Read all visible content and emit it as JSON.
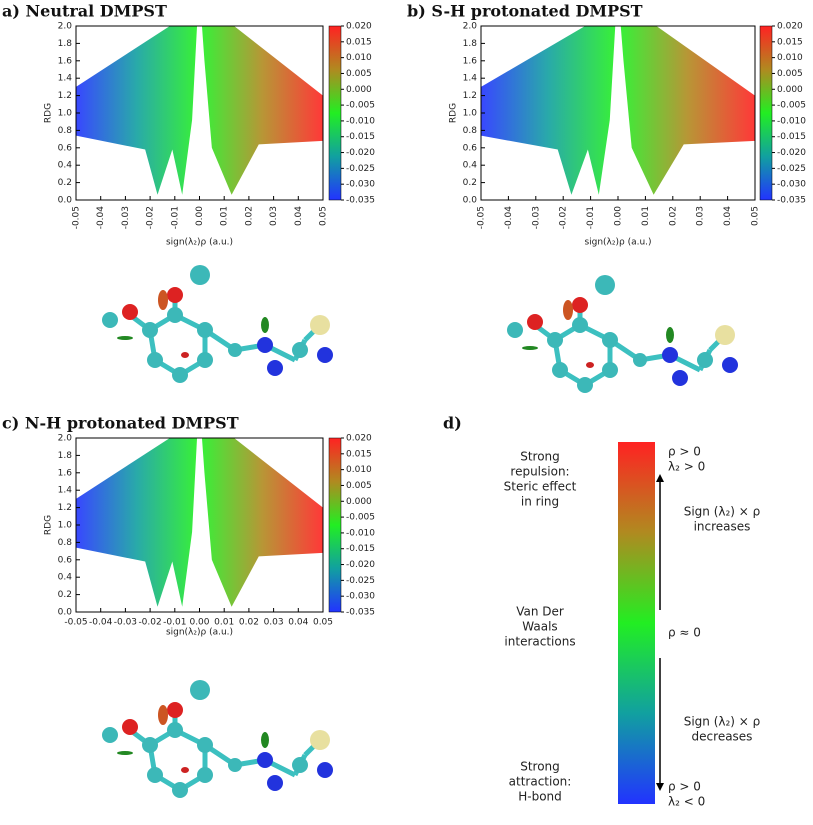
{
  "chart_data": [
    {
      "type": "scatter",
      "title": "a) Neutral DMPST",
      "xlabel": "sign(λ₂)ρ (a.u.)",
      "ylabel": "RDG",
      "xlim": [
        -0.05,
        0.05
      ],
      "xticks": [
        {
          "value": -0.05,
          "label": "-0.05"
        },
        {
          "value": -0.04,
          "label": "-0.04"
        },
        {
          "value": -0.03,
          "label": "-0.03"
        },
        {
          "value": -0.02,
          "label": "-0.02"
        },
        {
          "value": -0.01,
          "label": "-0.01"
        },
        {
          "value": 0,
          "label": "0.00"
        },
        {
          "value": 0.01,
          "label": "0.01"
        },
        {
          "value": 0.02,
          "label": "0.02"
        },
        {
          "value": 0.03,
          "label": "0.03"
        },
        {
          "value": 0.04,
          "label": "0.04"
        },
        {
          "value": 0.05,
          "label": "0.05"
        }
      ],
      "ylim": [
        0,
        2
      ],
      "yticks": [
        {
          "value": 0,
          "label": "0.0"
        },
        0.2,
        0.4,
        0.6,
        0.8,
        {
          "value": 1,
          "label": "1.0"
        },
        1.2,
        1.4,
        1.6,
        1.8,
        {
          "value": 2,
          "label": "2.0"
        }
      ],
      "colors": [
        "#2233ff",
        "#11a0a0",
        "#22ee22",
        "#b08a20",
        "#ff2222"
      ],
      "colorbar": {
        "lim": [
          -0.035,
          0.02
        ],
        "ticks": [
          {
            "value": 0.02,
            "label": "0.020"
          },
          {
            "value": 0.015,
            "label": "0.015"
          },
          {
            "value": 0.01,
            "label": "0.010"
          },
          {
            "value": 0.005,
            "label": "0.005"
          },
          {
            "value": 0,
            "label": "0.000"
          },
          {
            "value": -0.005,
            "label": "-0.005"
          },
          {
            "value": -0.01,
            "label": "-0.010"
          },
          {
            "value": -0.015,
            "label": "-0.015"
          },
          {
            "value": -0.02,
            "label": "-0.020"
          },
          {
            "value": -0.025,
            "label": "-0.025"
          },
          {
            "value": -0.03,
            "label": "-0.030"
          },
          {
            "value": -0.035,
            "label": "-0.035"
          }
        ]
      }
    },
    {
      "type": "scatter",
      "title": "b) S-H protonated DMPST",
      "xlabel": "sign(λ₂)ρ (a.u.)",
      "ylabel": "RDG",
      "xlim": [
        -0.05,
        0.05
      ],
      "xticks": [
        {
          "value": -0.05,
          "label": "-0.05"
        },
        {
          "value": -0.04,
          "label": "-0.04"
        },
        {
          "value": -0.03,
          "label": "-0.03"
        },
        {
          "value": -0.02,
          "label": "-0.02"
        },
        {
          "value": -0.01,
          "label": "-0.01"
        },
        {
          "value": 0,
          "label": "0.00"
        },
        {
          "value": 0.01,
          "label": "0.01"
        },
        {
          "value": 0.02,
          "label": "0.02"
        },
        {
          "value": 0.03,
          "label": "0.03"
        },
        {
          "value": 0.04,
          "label": "0.04"
        },
        {
          "value": 0.05,
          "label": "0.05"
        }
      ],
      "ylim": [
        0,
        2
      ],
      "yticks": [
        {
          "value": 0,
          "label": "0.0"
        },
        0.2,
        0.4,
        0.6,
        0.8,
        {
          "value": 1,
          "label": "1.0"
        },
        1.2,
        1.4,
        1.6,
        1.8,
        {
          "value": 2,
          "label": "2.0"
        }
      ],
      "colors": [
        "#2233ff",
        "#11a0a0",
        "#22ee22",
        "#b08a20",
        "#ff2222"
      ],
      "colorbar": {
        "lim": [
          -0.035,
          0.02
        ],
        "ticks": [
          {
            "value": 0.02,
            "label": "0.020"
          },
          {
            "value": 0.015,
            "label": "0.015"
          },
          {
            "value": 0.01,
            "label": "0.010"
          },
          {
            "value": 0.005,
            "label": "0.005"
          },
          {
            "value": 0,
            "label": "0.000"
          },
          {
            "value": -0.005,
            "label": "-0.005"
          },
          {
            "value": -0.01,
            "label": "-0.010"
          },
          {
            "value": -0.015,
            "label": "-0.015"
          },
          {
            "value": -0.02,
            "label": "-0.020"
          },
          {
            "value": -0.025,
            "label": "-0.025"
          },
          {
            "value": -0.03,
            "label": "-0.030"
          },
          {
            "value": -0.035,
            "label": "-0.035"
          }
        ]
      }
    },
    {
      "type": "scatter",
      "title": "c) N-H protonated DMPST",
      "xlabel": "sign(λ₂)ρ (a.u.)",
      "ylabel": "RDG",
      "xlim": [
        -0.05,
        0.05
      ],
      "xticks": [
        {
          "value": -0.05,
          "label": "-0.05"
        },
        {
          "value": -0.04,
          "label": "-0.04"
        },
        {
          "value": -0.03,
          "label": "-0.03"
        },
        {
          "value": -0.02,
          "label": "-0.02"
        },
        {
          "value": -0.01,
          "label": "-0.01"
        },
        {
          "value": 0,
          "label": "0.00"
        },
        {
          "value": 0.01,
          "label": "0.01"
        },
        {
          "value": 0.02,
          "label": "0.02"
        },
        {
          "value": 0.03,
          "label": "0.03"
        },
        {
          "value": 0.04,
          "label": "0.04"
        },
        {
          "value": 0.05,
          "label": "0.05"
        }
      ],
      "ylim": [
        0,
        2
      ],
      "yticks": [
        {
          "value": 0,
          "label": "0.0"
        },
        0.2,
        0.4,
        0.6,
        0.8,
        {
          "value": 1,
          "label": "1.0"
        },
        1.2,
        1.4,
        1.6,
        1.8,
        {
          "value": 2,
          "label": "2.0"
        }
      ],
      "colors": [
        "#2233ff",
        "#11a0a0",
        "#22ee22",
        "#b08a20",
        "#ff2222"
      ],
      "colorbar": {
        "lim": [
          -0.035,
          0.02
        ],
        "ticks": [
          {
            "value": 0.02,
            "label": "0.020"
          },
          {
            "value": 0.015,
            "label": "0.015"
          },
          {
            "value": 0.01,
            "label": "0.010"
          },
          {
            "value": 0.005,
            "label": "0.005"
          },
          {
            "value": 0,
            "label": "0.000"
          },
          {
            "value": -0.005,
            "label": "-0.005"
          },
          {
            "value": -0.01,
            "label": "-0.010"
          },
          {
            "value": -0.015,
            "label": "-0.015"
          },
          {
            "value": -0.02,
            "label": "-0.020"
          },
          {
            "value": -0.025,
            "label": "-0.025"
          },
          {
            "value": -0.03,
            "label": "-0.030"
          },
          {
            "value": -0.035,
            "label": "-0.035"
          }
        ]
      }
    }
  ],
  "panel_d": {
    "label": "d)",
    "repulsion": [
      "Strong",
      "repulsion:",
      "Steric effect",
      "in ring"
    ],
    "vdw": [
      "Van Der",
      "Waals",
      "interactions"
    ],
    "attraction": [
      "Strong",
      "attraction:",
      "H-bond"
    ],
    "top_marker": [
      "ρ > 0",
      "λ₂ > 0"
    ],
    "increases": [
      "Sign (λ₂) × ρ",
      "increases"
    ],
    "zero": "ρ ≈ 0",
    "decreases": [
      "Sign (λ₂) × ρ",
      "decreases"
    ],
    "bottom_marker": [
      "ρ > 0",
      "λ₂ < 0"
    ]
  }
}
